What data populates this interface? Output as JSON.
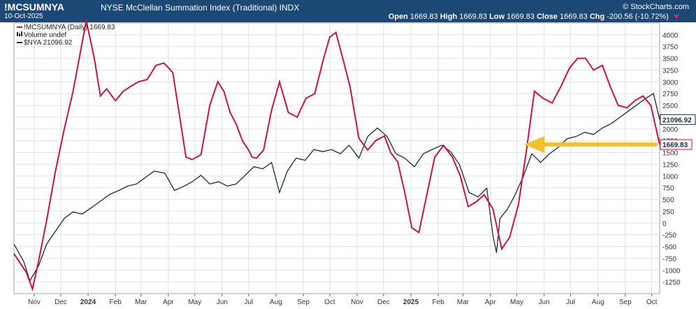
{
  "header": {
    "symbol": "!MCSUMNYA",
    "name": "NYSE McClellan Summation Index (Traditional)",
    "exchange": "INDX",
    "date": "10-Oct-2025",
    "credit": "© StockCharts.com",
    "open_label": "Open",
    "open": "1669.83",
    "high_label": "High",
    "high": "1669.83",
    "low_label": "Low",
    "low": "1669.83",
    "close_label": "Close",
    "close": "1669.83",
    "chg_label": "Chg",
    "chg": "-200.56 (-10.72%)"
  },
  "legend": [
    {
      "label": "!MCSUMNYA (Daily) 1669.83",
      "color": "#cc1144",
      "marker": "line"
    },
    {
      "label": "Volume undef",
      "color": "#1a2a3a",
      "marker": "bar-icon"
    },
    {
      "label": "$NYA 21096.92",
      "color": "#1a2a3a",
      "marker": "line"
    }
  ],
  "colors": {
    "mcsum": "#cc1144",
    "nya": "#1a2a3a",
    "arrow": "#f2c12e",
    "grid": "#dde3ea"
  },
  "annotation": {
    "type": "arrow",
    "color": "#f2c12e",
    "points_to_date": "2025-05-01",
    "level": 1669.83
  },
  "chart_data": {
    "type": "line",
    "title": "NYSE McClellan Summation Index (Traditional)",
    "xlabel": "",
    "ylabel": "",
    "ylim": [
      -1500,
      4250
    ],
    "y_ticks": [
      -1250,
      -1000,
      -750,
      -500,
      -250,
      0,
      250,
      500,
      750,
      1000,
      1250,
      1500,
      1750,
      2000,
      2250,
      2500,
      2750,
      3000,
      3250,
      3500,
      3750,
      4000
    ],
    "x_range": [
      "2023-10-09",
      "2025-10-10"
    ],
    "x_ticks": [
      {
        "date": "2023-11-01",
        "label": "Nov"
      },
      {
        "date": "2023-12-01",
        "label": "Dec"
      },
      {
        "date": "2024-01-01",
        "label": "2024"
      },
      {
        "date": "2024-02-01",
        "label": "Feb"
      },
      {
        "date": "2024-03-01",
        "label": "Mar"
      },
      {
        "date": "2024-04-01",
        "label": "Apr"
      },
      {
        "date": "2024-05-01",
        "label": "May"
      },
      {
        "date": "2024-06-01",
        "label": "Jun"
      },
      {
        "date": "2024-07-01",
        "label": "Jul"
      },
      {
        "date": "2024-08-01",
        "label": "Aug"
      },
      {
        "date": "2024-09-01",
        "label": "Sep"
      },
      {
        "date": "2024-10-01",
        "label": "Oct"
      },
      {
        "date": "2024-11-01",
        "label": "Nov"
      },
      {
        "date": "2024-12-01",
        "label": "Dec"
      },
      {
        "date": "2025-01-01",
        "label": "2025"
      },
      {
        "date": "2025-02-01",
        "label": "Feb"
      },
      {
        "date": "2025-03-01",
        "label": "Mar"
      },
      {
        "date": "2025-04-01",
        "label": "Apr"
      },
      {
        "date": "2025-05-01",
        "label": "May"
      },
      {
        "date": "2025-06-01",
        "label": "Jun"
      },
      {
        "date": "2025-07-01",
        "label": "Jul"
      },
      {
        "date": "2025-08-01",
        "label": "Aug"
      },
      {
        "date": "2025-09-01",
        "label": "Sep"
      },
      {
        "date": "2025-10-01",
        "label": "Oct"
      }
    ],
    "grid": true,
    "legend_position": "top-left",
    "last_value_labels": [
      {
        "series": "$NYA",
        "label": "21096.92"
      },
      {
        "series": "!MCSUMNYA",
        "label": "1669.83"
      }
    ],
    "series": [
      {
        "name": "!MCSUMNYA",
        "color": "#cc1144",
        "x": [
          "2023-10-09",
          "2023-10-16",
          "2023-10-23",
          "2023-10-30",
          "2023-11-06",
          "2023-11-15",
          "2023-11-25",
          "2023-12-05",
          "2023-12-15",
          "2023-12-24",
          "2023-12-30",
          "2024-01-08",
          "2024-01-15",
          "2024-01-22",
          "2024-02-01",
          "2024-02-10",
          "2024-02-18",
          "2024-02-27",
          "2024-03-08",
          "2024-03-18",
          "2024-03-27",
          "2024-04-06",
          "2024-04-14",
          "2024-04-21",
          "2024-04-28",
          "2024-05-08",
          "2024-05-18",
          "2024-05-27",
          "2024-06-03",
          "2024-06-10",
          "2024-06-17",
          "2024-06-24",
          "2024-07-01",
          "2024-07-05",
          "2024-07-10",
          "2024-07-18",
          "2024-07-27",
          "2024-08-05",
          "2024-08-15",
          "2024-08-25",
          "2024-09-04",
          "2024-09-14",
          "2024-09-24",
          "2024-10-01",
          "2024-10-08",
          "2024-10-15",
          "2024-10-24",
          "2024-11-03",
          "2024-11-13",
          "2024-11-22",
          "2024-12-02",
          "2024-12-09",
          "2024-12-17",
          "2024-12-25",
          "2025-01-02",
          "2025-01-10",
          "2025-01-19",
          "2025-01-28",
          "2025-02-07",
          "2025-02-17",
          "2025-02-26",
          "2025-03-07",
          "2025-03-16",
          "2025-03-25",
          "2025-04-04",
          "2025-04-14",
          "2025-04-23",
          "2025-05-03",
          "2025-05-12",
          "2025-05-21",
          "2025-05-31",
          "2025-06-10",
          "2025-06-20",
          "2025-06-30",
          "2025-07-09",
          "2025-07-18",
          "2025-07-27",
          "2025-08-06",
          "2025-08-15",
          "2025-08-24",
          "2025-09-03",
          "2025-09-12",
          "2025-09-21",
          "2025-09-30",
          "2025-10-10"
        ],
        "y": [
          -650,
          -850,
          -1050,
          -1400,
          -800,
          50,
          1100,
          2000,
          2800,
          3700,
          4300,
          3500,
          2700,
          2850,
          2600,
          2800,
          2900,
          3000,
          3050,
          3350,
          3400,
          3200,
          2250,
          1400,
          1350,
          1450,
          2500,
          3000,
          2800,
          2350,
          2100,
          1750,
          1550,
          1400,
          1380,
          1550,
          2400,
          3000,
          2350,
          2250,
          2650,
          2750,
          3500,
          3950,
          4050,
          3550,
          2900,
          1800,
          1550,
          1750,
          1850,
          1500,
          1300,
          650,
          -100,
          -200,
          600,
          1400,
          1650,
          1400,
          1000,
          350,
          450,
          600,
          300,
          -550,
          -300,
          400,
          1550,
          2800,
          2650,
          2550,
          2900,
          3300,
          3500,
          3500,
          3250,
          3350,
          2900,
          2500,
          2450,
          2600,
          2700,
          2500,
          1669.83
        ]
      },
      {
        "name": "$NYA",
        "color": "#1a2a3a",
        "x": [
          "2023-10-09",
          "2023-10-20",
          "2023-10-27",
          "2023-11-06",
          "2023-11-15",
          "2023-11-25",
          "2023-12-05",
          "2023-12-15",
          "2023-12-25",
          "2024-01-05",
          "2024-01-15",
          "2024-01-25",
          "2024-02-05",
          "2024-02-15",
          "2024-02-25",
          "2024-03-06",
          "2024-03-16",
          "2024-03-28",
          "2024-04-08",
          "2024-04-19",
          "2024-04-28",
          "2024-05-08",
          "2024-05-18",
          "2024-05-28",
          "2024-06-07",
          "2024-06-17",
          "2024-06-27",
          "2024-07-07",
          "2024-07-17",
          "2024-07-27",
          "2024-08-05",
          "2024-08-14",
          "2024-08-24",
          "2024-09-03",
          "2024-09-13",
          "2024-09-23",
          "2024-10-03",
          "2024-10-13",
          "2024-10-23",
          "2024-11-03",
          "2024-11-13",
          "2024-11-24",
          "2024-12-05",
          "2024-12-15",
          "2024-12-25",
          "2025-01-05",
          "2025-01-15",
          "2025-01-25",
          "2025-02-05",
          "2025-02-15",
          "2025-02-25",
          "2025-03-08",
          "2025-03-18",
          "2025-03-28",
          "2025-04-04",
          "2025-04-08",
          "2025-04-12",
          "2025-04-20",
          "2025-04-28",
          "2025-05-08",
          "2025-05-18",
          "2025-05-28",
          "2025-06-07",
          "2025-06-17",
          "2025-06-27",
          "2025-07-07",
          "2025-07-17",
          "2025-07-27",
          "2025-08-06",
          "2025-08-16",
          "2025-08-26",
          "2025-09-05",
          "2025-09-15",
          "2025-09-25",
          "2025-10-03",
          "2025-10-10"
        ],
        "y": [
          18200,
          17800,
          17350,
          17700,
          18200,
          18500,
          18800,
          18950,
          18900,
          19050,
          19200,
          19350,
          19450,
          19550,
          19600,
          19750,
          19900,
          19850,
          19450,
          19550,
          19650,
          19800,
          19600,
          19650,
          19550,
          19600,
          19800,
          20000,
          19950,
          20100,
          19400,
          19900,
          20200,
          20150,
          20400,
          20350,
          20400,
          20300,
          20500,
          20200,
          20700,
          20900,
          20700,
          20300,
          20200,
          20000,
          20300,
          20400,
          20500,
          20350,
          20050,
          19400,
          19300,
          19500,
          18400,
          18000,
          18800,
          19000,
          19300,
          19750,
          20300,
          20100,
          20300,
          20450,
          20650,
          20700,
          20800,
          20750,
          20900,
          21000,
          21150,
          21300,
          21450,
          21600,
          21700,
          21096.92
        ]
      }
    ]
  }
}
